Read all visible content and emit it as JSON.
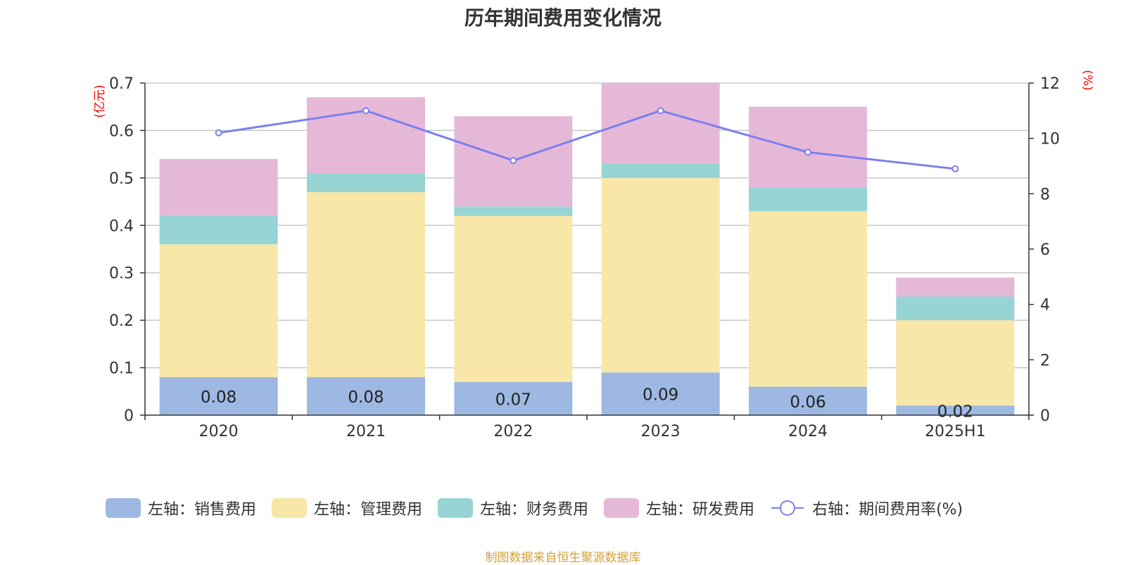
{
  "title": "历年期间费用变化情况",
  "source": "制图数据来自恒生聚源数据库",
  "colors": {
    "sales": "#9db8e2",
    "admin": "#f8e7a8",
    "finance": "#97d4d4",
    "rd": "#e6b8d8",
    "rate": "#7b7ff0",
    "axis_label": "#ff0000",
    "grid": "#c8c8c8",
    "text": "#333333"
  },
  "legend": [
    {
      "label": "左轴：销售费用",
      "type": "swatch",
      "color_key": "sales"
    },
    {
      "label": "左轴：管理费用",
      "type": "swatch",
      "color_key": "admin"
    },
    {
      "label": "左轴：财务费用",
      "type": "swatch",
      "color_key": "finance"
    },
    {
      "label": "左轴：研发费用",
      "type": "swatch",
      "color_key": "rd"
    },
    {
      "label": "右轴：期间费用率(%)",
      "type": "line",
      "color_key": "rate"
    }
  ],
  "chart_data": {
    "type": "bar",
    "stacked": true,
    "categories": [
      "2020",
      "2021",
      "2022",
      "2023",
      "2024",
      "2025H1"
    ],
    "series": [
      {
        "name": "左轴：销售费用",
        "axis": "left",
        "color_key": "sales",
        "values": [
          0.08,
          0.08,
          0.07,
          0.09,
          0.06,
          0.02
        ],
        "labels": [
          "0.08",
          "0.08",
          "0.07",
          "0.09",
          "0.06",
          "0.02"
        ]
      },
      {
        "name": "左轴：管理费用",
        "axis": "left",
        "color_key": "admin",
        "values": [
          0.28,
          0.39,
          0.35,
          0.41,
          0.37,
          0.18
        ]
      },
      {
        "name": "左轴：财务费用",
        "axis": "left",
        "color_key": "finance",
        "values": [
          0.06,
          0.04,
          0.02,
          0.03,
          0.05,
          0.05
        ]
      },
      {
        "name": "左轴：研发费用",
        "axis": "left",
        "color_key": "rd",
        "values": [
          0.12,
          0.16,
          0.19,
          0.17,
          0.17,
          0.04
        ]
      },
      {
        "name": "右轴：期间费用率(%)",
        "axis": "right",
        "type": "line",
        "color_key": "rate",
        "values": [
          10.2,
          11.0,
          9.2,
          11.0,
          9.5,
          8.9
        ]
      }
    ],
    "left_axis": {
      "label": "(亿元)",
      "ylim": [
        0,
        0.7
      ],
      "ticks": [
        "0",
        "0.1",
        "0.2",
        "0.3",
        "0.4",
        "0.5",
        "0.6",
        "0.7"
      ]
    },
    "right_axis": {
      "label": "(%)",
      "ylim": [
        0,
        12
      ],
      "ticks": [
        "0",
        "2",
        "4",
        "6",
        "8",
        "10",
        "12"
      ]
    },
    "grid": true,
    "legend_position": "bottom"
  }
}
